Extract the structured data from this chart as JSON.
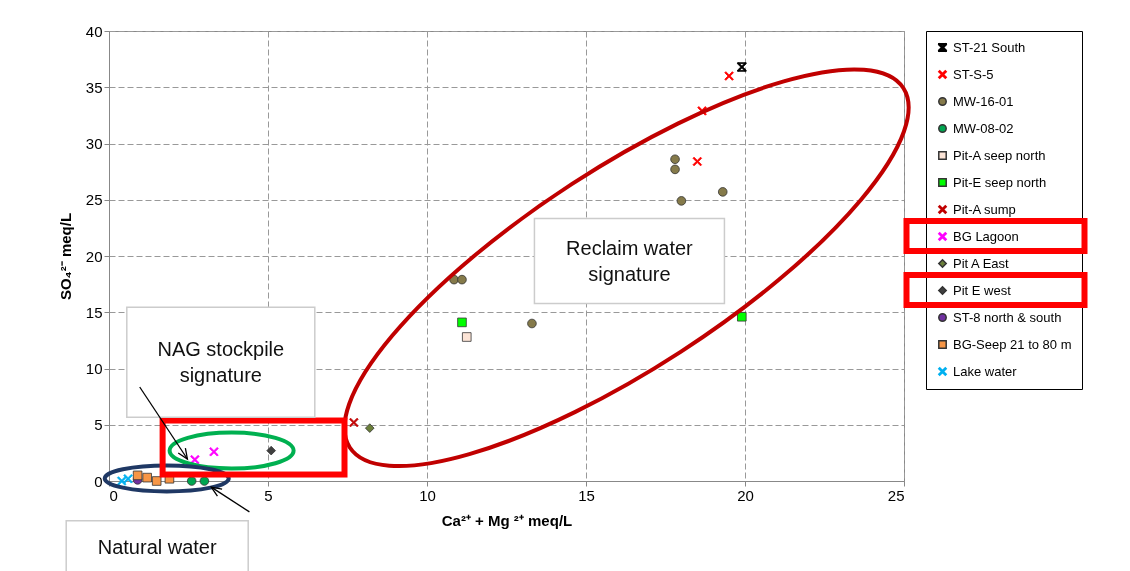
{
  "chart_data": {
    "type": "scatter",
    "xlabel": "Ca²⁺ + Mg ²⁺ meq/L",
    "ylabel": "SO₄²⁻ meq/L",
    "xlim": [
      0,
      25
    ],
    "ylim": [
      0,
      40
    ],
    "xticks": [
      0,
      5,
      10,
      15,
      20,
      25
    ],
    "yticks": [
      0,
      5,
      10,
      15,
      20,
      25,
      30,
      35,
      40
    ],
    "grid": true,
    "legend": "right",
    "annotations": [
      "Reclaim water signature",
      "NAG stockpile signature",
      "Natural water"
    ],
    "series": [
      {
        "name": "ST-21 South",
        "color": "#000000",
        "marker": "star",
        "x": [
          19.9
        ],
        "values": [
          36.8
        ]
      },
      {
        "name": "ST-S-5",
        "color": "#ff0000",
        "marker": "cross",
        "x": [
          19.5,
          18.65,
          18.5
        ],
        "values": [
          36.0,
          32.9,
          28.4
        ]
      },
      {
        "name": "MW-16-01",
        "color": "#857a4a",
        "marker": "circle",
        "x": [
          17.8,
          17.8,
          18.0,
          19.3,
          10.85,
          11.1,
          13.3
        ],
        "values": [
          28.6,
          27.7,
          24.9,
          25.7,
          17.9,
          17.9,
          14.0
        ]
      },
      {
        "name": "MW-08-02",
        "color": "#00a550",
        "marker": "circle",
        "x": [
          2.6,
          3.0
        ],
        "values": [
          0.0,
          0.0
        ]
      },
      {
        "name": "Pit-A seep north",
        "color": "#fce4d6",
        "marker": "square",
        "x": [
          11.25
        ],
        "values": [
          12.8
        ]
      },
      {
        "name": "Pit-E seep north",
        "color": "#00ff00",
        "marker": "square",
        "x": [
          11.1,
          19.9
        ],
        "values": [
          14.1,
          14.6
        ]
      },
      {
        "name": "Pit-A sump",
        "color": "#c00000",
        "marker": "cross",
        "x": [
          7.7
        ],
        "values": [
          5.2
        ]
      },
      {
        "name": "BG Lagoon",
        "color": "#ff00ff",
        "marker": "cross",
        "x": [
          2.7,
          3.3
        ],
        "values": [
          1.9,
          2.6
        ]
      },
      {
        "name": "Pit A East",
        "color": "#6b7f3a",
        "marker": "diamond",
        "x": [
          8.2
        ],
        "values": [
          4.7
        ]
      },
      {
        "name": "Pit E west",
        "color": "#404040",
        "marker": "diamond",
        "x": [
          5.1
        ],
        "values": [
          2.7
        ]
      },
      {
        "name": "ST-8 north & south",
        "color": "#7030a0",
        "marker": "circle",
        "x": [
          0.9
        ],
        "values": [
          0.1
        ]
      },
      {
        "name": "BG-Seep 21 to 80 m",
        "color": "#f79646",
        "marker": "square",
        "x": [
          0.9,
          1.2,
          1.5,
          1.9
        ],
        "values": [
          0.5,
          0.3,
          0.0,
          0.2
        ]
      },
      {
        "name": "Lake water",
        "color": "#00b0f0",
        "marker": "cross",
        "x": [
          0.4,
          0.6
        ],
        "values": [
          0.0,
          0.2
        ]
      }
    ]
  }
}
